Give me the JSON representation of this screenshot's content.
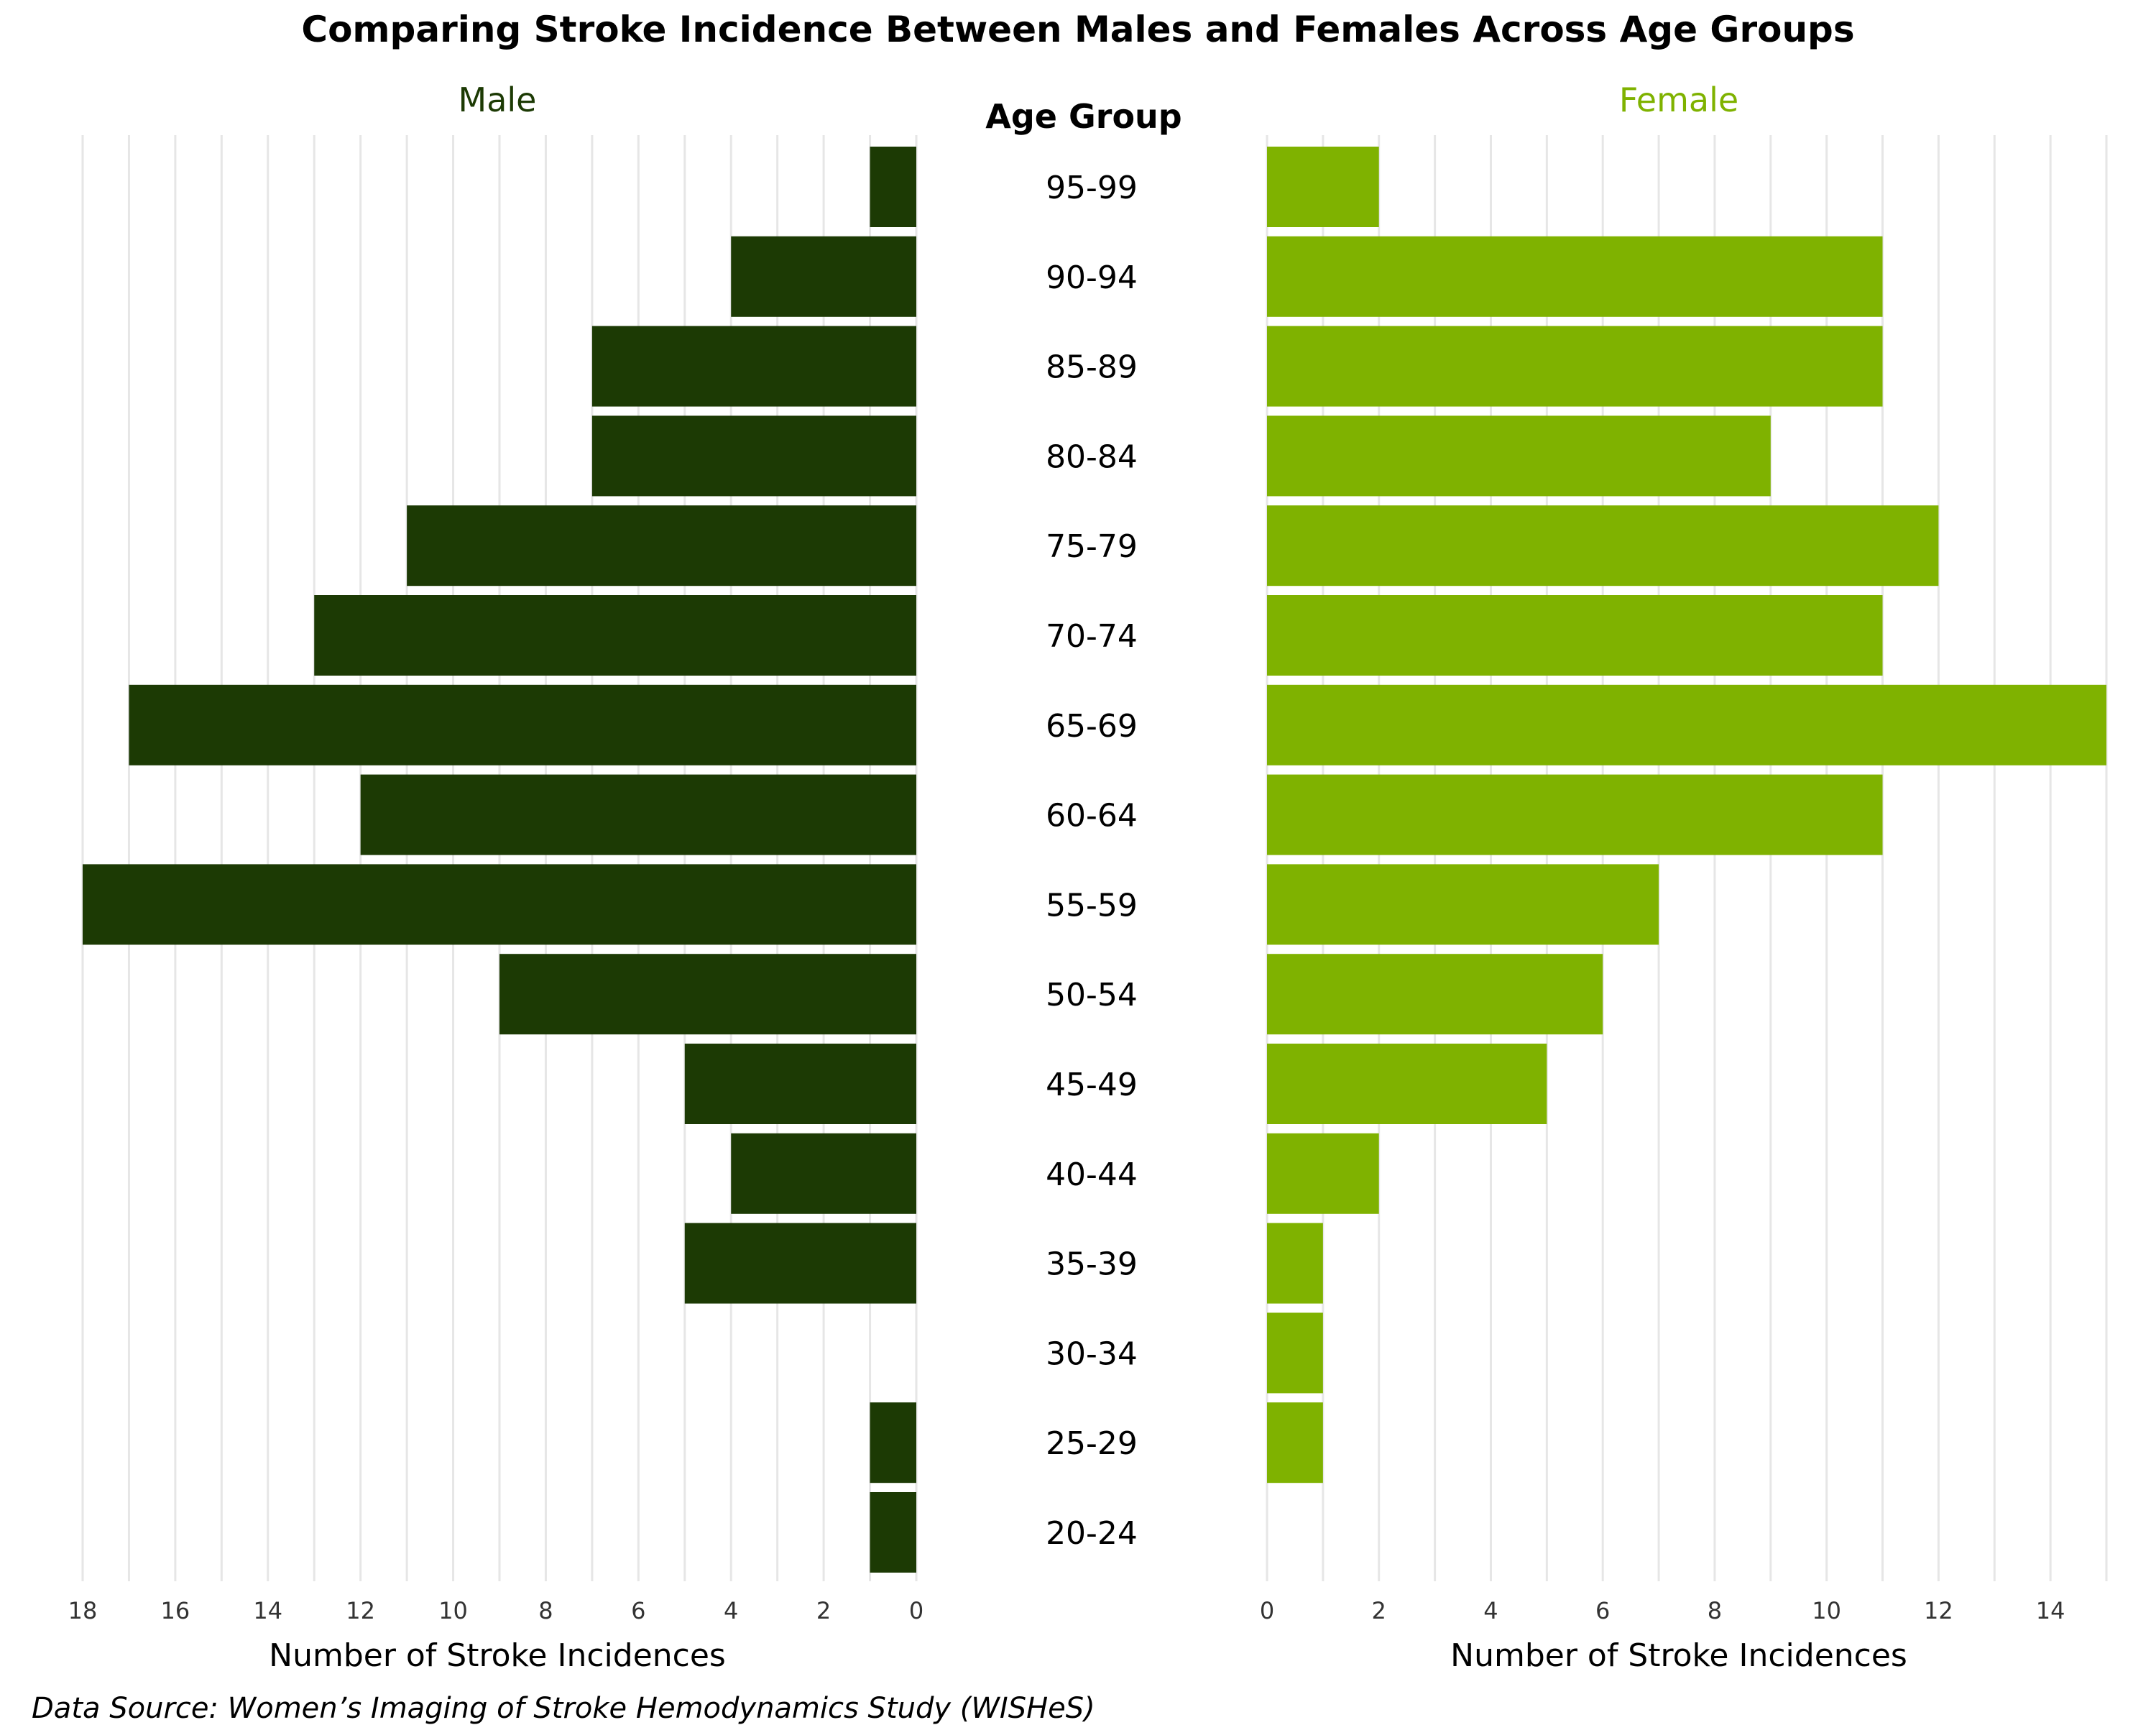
{
  "chart_data": {
    "type": "bar",
    "title": "Comparing Stroke Incidence Between Males and Females Across Age Groups",
    "center_header": "Age Group",
    "categories": [
      "95-99",
      "90-94",
      "85-89",
      "80-84",
      "75-79",
      "70-74",
      "65-69",
      "60-64",
      "55-59",
      "50-54",
      "45-49",
      "40-44",
      "35-39",
      "30-34",
      "25-29",
      "20-24"
    ],
    "series": [
      {
        "name": "Male",
        "color": "#1c3a04",
        "values": [
          1,
          4,
          7,
          7,
          11,
          13,
          17,
          12,
          18,
          9,
          5,
          4,
          5,
          0,
          1,
          1
        ],
        "xlabel": "Number of Stroke Incidences",
        "xlim": [
          0,
          18
        ],
        "xticks": [
          18,
          16,
          14,
          12,
          10,
          8,
          6,
          4,
          2,
          0
        ],
        "direction": "reversed"
      },
      {
        "name": "Female",
        "color": "#7fb200",
        "values": [
          2,
          11,
          11,
          9,
          12,
          11,
          15,
          11,
          7,
          6,
          5,
          2,
          1,
          1,
          1,
          0
        ],
        "xlabel": "Number of Stroke Incidences",
        "xlim": [
          0,
          15
        ],
        "xticks": [
          0,
          2,
          4,
          6,
          8,
          10,
          12,
          14
        ],
        "direction": "normal"
      }
    ],
    "grid": true,
    "source": "Data Source: Women’s Imaging of Stroke Hemodynamics Study (WISHeS)"
  }
}
